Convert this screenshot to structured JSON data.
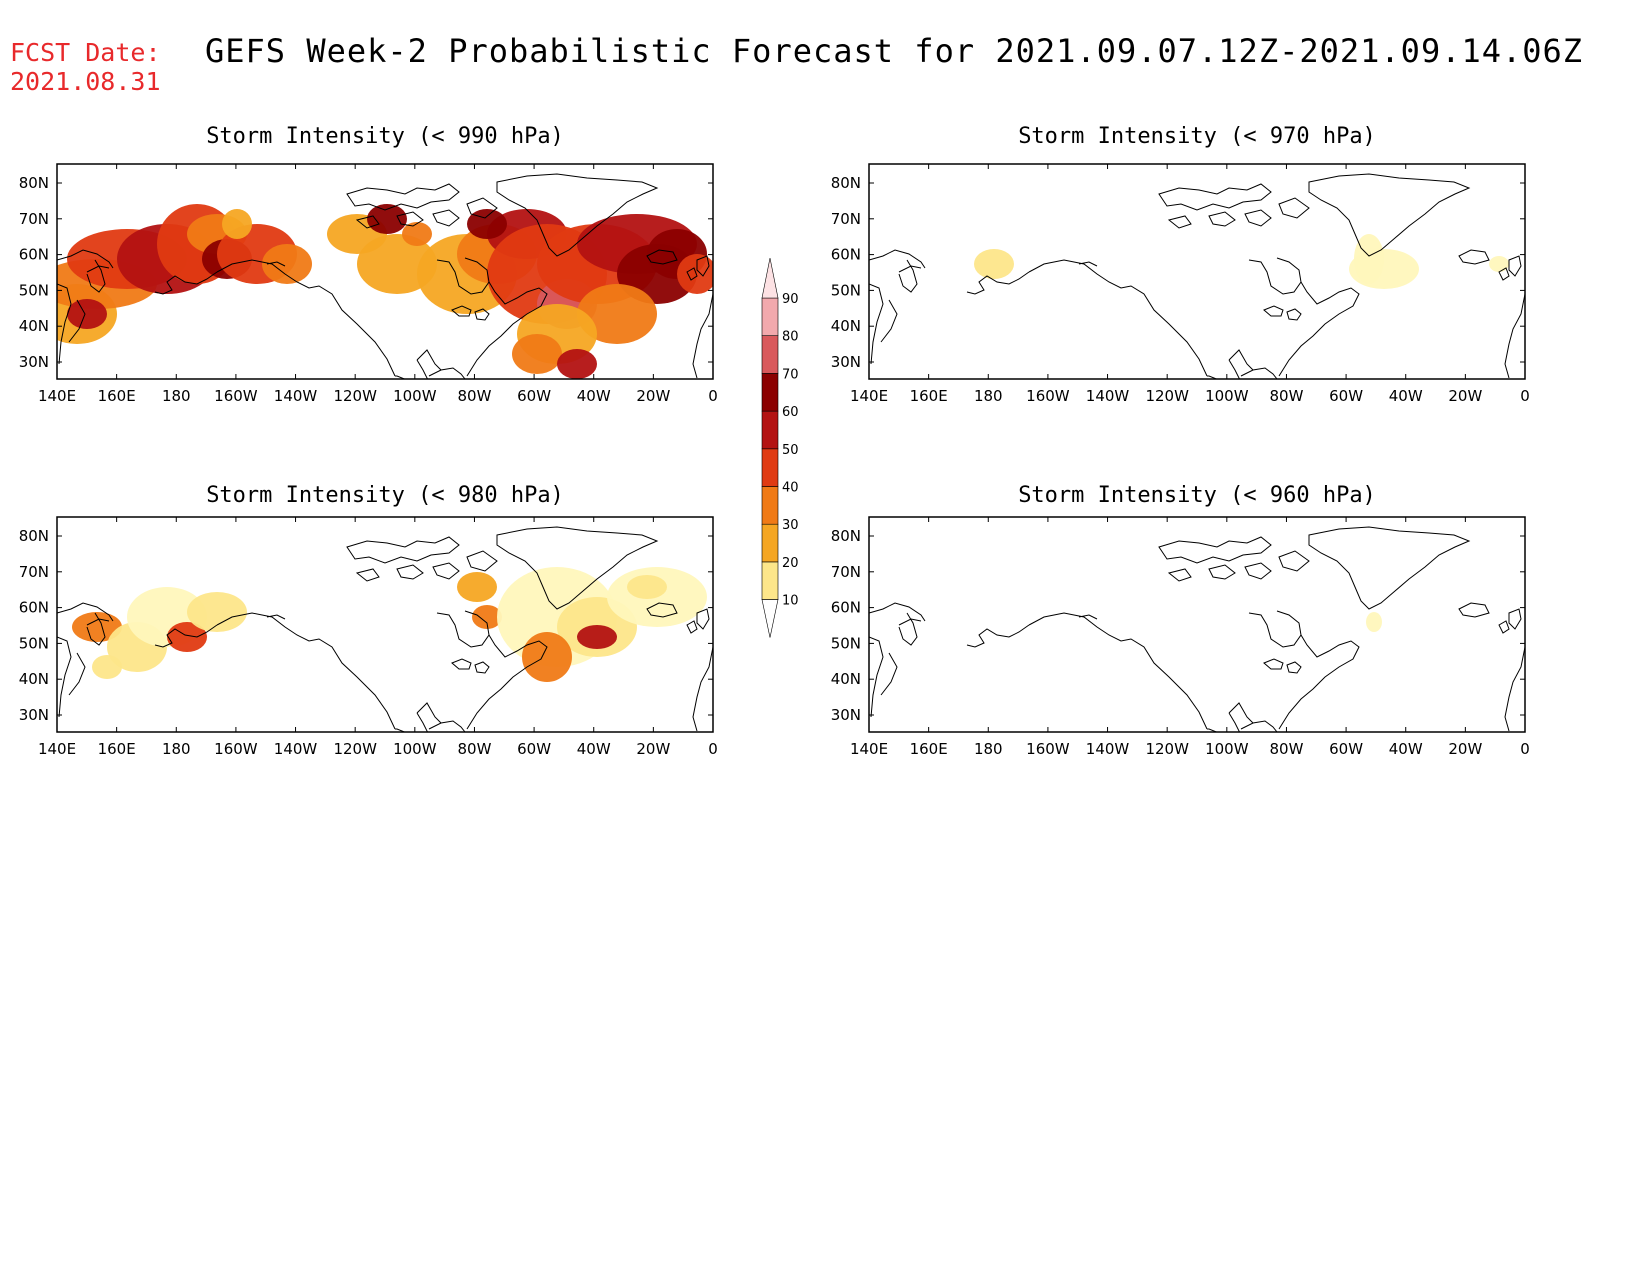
{
  "header": {
    "fcst_label": "FCST Date:",
    "fcst_date": "2021.08.31",
    "title": "GEFS Week-2 Probabilistic Forecast for 2021.09.07.12Z-2021.09.14.06Z"
  },
  "panels": [
    {
      "title": "Storm Intensity (< 990 hPa)"
    },
    {
      "title": "Storm Intensity (< 970 hPa)"
    },
    {
      "title": "Storm Intensity (< 980 hPa)"
    },
    {
      "title": "Storm Intensity (< 960 hPa)"
    }
  ],
  "axes": {
    "lon_labels": [
      "140E",
      "160E",
      "180",
      "160W",
      "140W",
      "120W",
      "100W",
      "80W",
      "60W",
      "40W",
      "20W",
      "0"
    ],
    "lat_labels": [
      "80N",
      "70N",
      "60N",
      "50N",
      "40N",
      "30N"
    ]
  },
  "colorbar": {
    "levels": [
      "10",
      "20",
      "30",
      "40",
      "50",
      "60",
      "70",
      "80",
      "90"
    ],
    "colors": [
      "#fff7bc",
      "#fde68a",
      "#f5a623",
      "#f07a16",
      "#e03a12",
      "#b31212",
      "#8b0000",
      "#d9595c",
      "#f2a9ad",
      "#fde2e4"
    ]
  },
  "colors": {
    "fcst_text": "#e8292b",
    "land_line": "#000000"
  }
}
